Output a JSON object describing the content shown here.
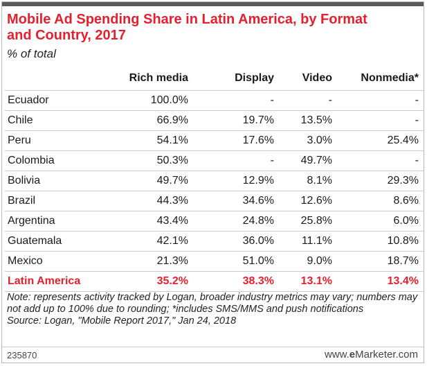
{
  "chart_data": {
    "type": "table",
    "title": "Mobile Ad Spending Share in Latin America, by Format and Country, 2017",
    "subtitle": "% of total",
    "columns": [
      "",
      "Rich media",
      "Display",
      "Video",
      "Nonmedia*"
    ],
    "rows": [
      {
        "country": "Ecuador",
        "values": [
          "100.0%",
          "-",
          "-",
          "-"
        ]
      },
      {
        "country": "Chile",
        "values": [
          "66.9%",
          "19.7%",
          "13.5%",
          "-"
        ]
      },
      {
        "country": "Peru",
        "values": [
          "54.1%",
          "17.6%",
          "3.0%",
          "25.4%"
        ]
      },
      {
        "country": "Colombia",
        "values": [
          "50.3%",
          "-",
          "49.7%",
          "-"
        ]
      },
      {
        "country": "Bolivia",
        "values": [
          "49.7%",
          "12.9%",
          "8.1%",
          "29.3%"
        ]
      },
      {
        "country": "Brazil",
        "values": [
          "44.3%",
          "34.6%",
          "12.6%",
          "8.6%"
        ]
      },
      {
        "country": "Argentina",
        "values": [
          "43.4%",
          "24.8%",
          "25.8%",
          "6.0%"
        ]
      },
      {
        "country": "Guatemala",
        "values": [
          "42.1%",
          "36.0%",
          "11.1%",
          "10.8%"
        ]
      },
      {
        "country": "Mexico",
        "values": [
          "21.3%",
          "51.0%",
          "9.0%",
          "18.7%"
        ]
      },
      {
        "country": "Latin America",
        "values": [
          "35.2%",
          "38.3%",
          "13.1%",
          "13.4%"
        ]
      }
    ],
    "highlight_row": "Latin America",
    "colors": {
      "accent": "#e5202e",
      "top_bar": "#5a5a5a"
    }
  },
  "notes": {
    "note": "Note: represents activity tracked by Logan, broader industry metrics may vary; numbers may not add up to 100% due to rounding; *includes SMS/MMS and push notifications",
    "source": "Source: Logan, \"Mobile Report 2017,\" Jan 24, 2018"
  },
  "footer": {
    "chart_id": "235870",
    "brand_prefix": "www.",
    "brand_e": "e",
    "brand_suffix": "Marketer.com"
  }
}
